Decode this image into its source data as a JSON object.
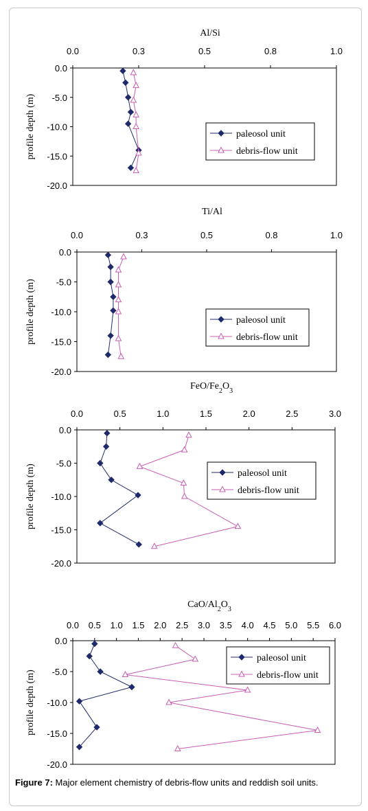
{
  "caption": {
    "label": "Figure 7:",
    "text": "Major element chemistry of debris-flow units and reddish soil units."
  },
  "colors": {
    "paleosol": "#1f2a6b",
    "debris": "#c85cb4"
  },
  "chart_data": [
    {
      "type": "line",
      "title": "Al/Si",
      "ylabel": "profile depth (m)",
      "xlim": [
        0,
        1.0
      ],
      "ylim": [
        -20,
        0
      ],
      "xticks": [
        "0.0",
        "0.3",
        "0.5",
        "0.8",
        "1.0"
      ],
      "yticks": [
        "0.0",
        "-5.0",
        "-10.0",
        "-15.0",
        "-20.0"
      ],
      "series": [
        {
          "name": "paleosol unit",
          "marker": "diamond",
          "x": [
            0.19,
            0.2,
            0.21,
            0.22,
            0.21,
            0.25,
            0.22
          ],
          "y": [
            -0.5,
            -2.5,
            -5.0,
            -7.5,
            -9.5,
            -14.0,
            -17.0
          ]
        },
        {
          "name": "debris-flow unit",
          "marker": "triangle",
          "x": [
            0.23,
            0.24,
            0.23,
            0.24,
            0.24,
            0.25,
            0.24
          ],
          "y": [
            -0.8,
            -3.0,
            -5.5,
            -8.0,
            -10.0,
            -14.5,
            -17.5
          ]
        }
      ]
    },
    {
      "type": "line",
      "title": "Ti/Al",
      "ylabel": "profile depth (m)",
      "xlim": [
        0,
        1.0
      ],
      "ylim": [
        -20,
        0
      ],
      "xticks": [
        "0.0",
        "0.3",
        "0.5",
        "0.8",
        "1.0"
      ],
      "yticks": [
        "0.0",
        "-5.0",
        "-10.0",
        "-15.0",
        "-20.0"
      ],
      "series": [
        {
          "name": "paleosol unit",
          "marker": "diamond",
          "x": [
            0.12,
            0.13,
            0.13,
            0.14,
            0.14,
            0.13,
            0.12
          ],
          "y": [
            -0.5,
            -2.5,
            -5.0,
            -7.5,
            -9.8,
            -14.0,
            -17.2
          ]
        },
        {
          "name": "debris-flow unit",
          "marker": "triangle",
          "x": [
            0.18,
            0.16,
            0.16,
            0.16,
            0.16,
            0.16,
            0.17
          ],
          "y": [
            -0.8,
            -3.0,
            -5.5,
            -8.0,
            -10.0,
            -14.5,
            -17.5
          ]
        }
      ]
    },
    {
      "type": "line",
      "title": "FeO/Fe2O3",
      "ylabel": "profile depth (m)",
      "xlim": [
        0,
        3.0
      ],
      "ylim": [
        -20,
        0
      ],
      "xticks": [
        "0.0",
        "0.5",
        "1.0",
        "1.5",
        "2.0",
        "2.5",
        "3.0"
      ],
      "yticks": [
        "0.0",
        "-5.0",
        "-10.0",
        "-15.0",
        "-20.0"
      ],
      "series": [
        {
          "name": "paleosol unit",
          "marker": "diamond",
          "x": [
            0.35,
            0.34,
            0.27,
            0.4,
            0.71,
            0.27,
            0.72
          ],
          "y": [
            -0.5,
            -2.5,
            -5.0,
            -7.5,
            -9.8,
            -14.0,
            -17.2
          ]
        },
        {
          "name": "debris-flow unit",
          "marker": "triangle",
          "x": [
            1.3,
            1.25,
            0.73,
            1.24,
            1.25,
            1.87,
            0.9
          ],
          "y": [
            -0.8,
            -3.0,
            -5.5,
            -8.0,
            -10.0,
            -14.5,
            -17.5
          ]
        }
      ]
    },
    {
      "type": "line",
      "title": "CaO/Al2O3",
      "ylabel": "profile depth (m)",
      "xlim": [
        0,
        6.0
      ],
      "ylim": [
        -20,
        0
      ],
      "xticks": [
        "0.0",
        "0.5",
        "1.0",
        "1.5",
        "2.0",
        "2.5",
        "3.0",
        "3.5",
        "4.0",
        "4.5",
        "5.0",
        "5.5",
        "6.0"
      ],
      "yticks": [
        "0.0",
        "-5.0",
        "-10.0",
        "-15.0",
        "-20.0"
      ],
      "series": [
        {
          "name": "paleosol unit",
          "marker": "diamond",
          "x": [
            0.5,
            0.38,
            0.63,
            1.35,
            0.15,
            0.55,
            0.15
          ],
          "y": [
            -0.5,
            -2.5,
            -5.0,
            -7.5,
            -9.8,
            -14.0,
            -17.2
          ]
        },
        {
          "name": "debris-flow unit",
          "marker": "triangle",
          "x": [
            2.35,
            2.8,
            1.2,
            4.0,
            2.2,
            5.6,
            2.4
          ],
          "y": [
            -0.8,
            -3.0,
            -5.5,
            -8.0,
            -10.0,
            -14.5,
            -17.5
          ]
        }
      ]
    }
  ]
}
